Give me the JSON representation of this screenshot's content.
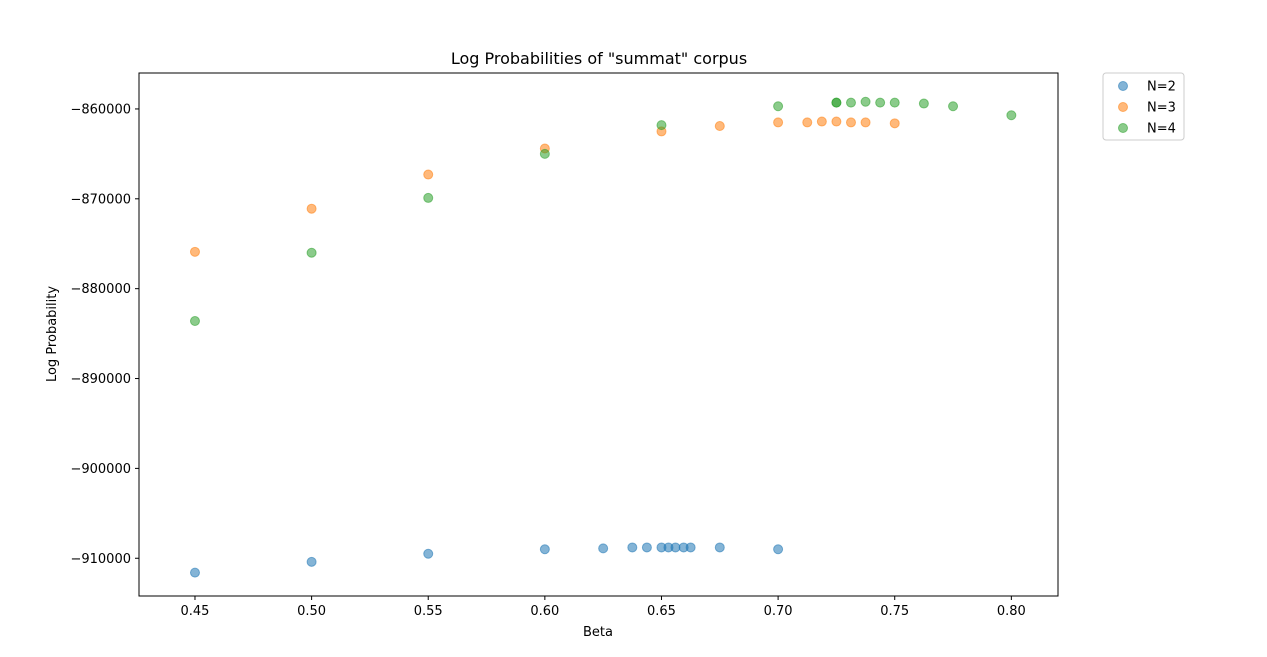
{
  "chart_data": {
    "type": "scatter",
    "title": "Log Probabilities of \"summat\" corpus",
    "xlabel": "Beta",
    "ylabel": "Log Probability",
    "xlim": [
      0.426,
      0.82
    ],
    "ylim": [
      -914200,
      -856000
    ],
    "xticks": [
      0.45,
      0.5,
      0.55,
      0.6,
      0.65,
      0.7,
      0.75,
      0.8
    ],
    "xtick_labels": [
      "0.45",
      "0.50",
      "0.55",
      "0.60",
      "0.65",
      "0.70",
      "0.75",
      "0.80"
    ],
    "yticks": [
      -860000,
      -870000,
      -880000,
      -890000,
      -900000,
      -910000
    ],
    "ytick_labels": [
      "−860000",
      "−870000",
      "−880000",
      "−890000",
      "−900000",
      "−910000"
    ],
    "legend_position": "outside-top-right",
    "grid": false,
    "series": [
      {
        "name": "N=2",
        "color": "#1f77b4",
        "points": [
          [
            0.45,
            -911600
          ],
          [
            0.5,
            -910400
          ],
          [
            0.55,
            -909500
          ],
          [
            0.6,
            -909000
          ],
          [
            0.625,
            -908900
          ],
          [
            0.6375,
            -908800
          ],
          [
            0.64375,
            -908800
          ],
          [
            0.65,
            -908800
          ],
          [
            0.653,
            -908800
          ],
          [
            0.656,
            -908800
          ],
          [
            0.6595,
            -908800
          ],
          [
            0.6625,
            -908800
          ],
          [
            0.675,
            -908800
          ],
          [
            0.7,
            -909000
          ]
        ]
      },
      {
        "name": "N=3",
        "color": "#ff7f0e",
        "points": [
          [
            0.45,
            -875900
          ],
          [
            0.5,
            -871100
          ],
          [
            0.55,
            -867300
          ],
          [
            0.6,
            -864400
          ],
          [
            0.65,
            -862500
          ],
          [
            0.675,
            -861900
          ],
          [
            0.7,
            -861500
          ],
          [
            0.7125,
            -861500
          ],
          [
            0.71875,
            -861400
          ],
          [
            0.725,
            -861400
          ],
          [
            0.73125,
            -861500
          ],
          [
            0.7375,
            -861500
          ],
          [
            0.75,
            -861600
          ]
        ]
      },
      {
        "name": "N=4",
        "color": "#2ca02c",
        "points": [
          [
            0.45,
            -883600
          ],
          [
            0.5,
            -876000
          ],
          [
            0.55,
            -869900
          ],
          [
            0.6,
            -865000
          ],
          [
            0.65,
            -861800
          ],
          [
            0.7,
            -859700
          ],
          [
            0.725,
            -859300
          ],
          [
            0.725,
            -859300
          ],
          [
            0.73125,
            -859300
          ],
          [
            0.7375,
            -859200
          ],
          [
            0.74375,
            -859300
          ],
          [
            0.75,
            -859300
          ],
          [
            0.7625,
            -859400
          ],
          [
            0.775,
            -859700
          ],
          [
            0.8,
            -860700
          ]
        ]
      }
    ]
  }
}
